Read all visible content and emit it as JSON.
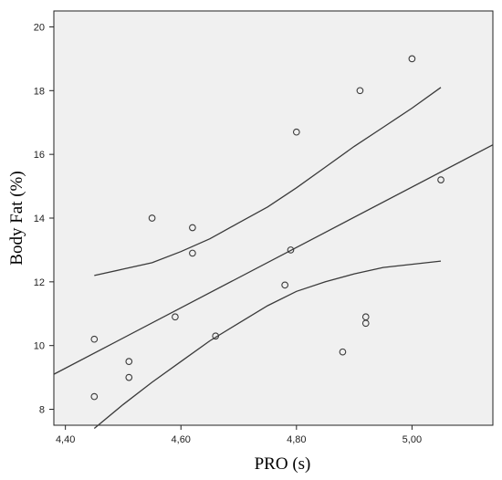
{
  "chart_data": {
    "type": "scatter",
    "xlabel": "PRO (s)",
    "ylabel": "Body Fat (%)",
    "xlim": [
      4.38,
      5.14
    ],
    "ylim": [
      7.5,
      20.5
    ],
    "x_ticks": [
      4.4,
      4.6,
      4.8,
      5.0
    ],
    "x_tick_labels": [
      "4,40",
      "4,60",
      "4,80",
      "5,00"
    ],
    "y_ticks": [
      8,
      10,
      12,
      14,
      16,
      18,
      20
    ],
    "y_tick_labels": [
      "8",
      "10",
      "12",
      "14",
      "16",
      "18",
      "20"
    ],
    "grid": false,
    "legend": "none",
    "points": [
      {
        "x": 4.45,
        "y": 10.2
      },
      {
        "x": 4.45,
        "y": 8.4
      },
      {
        "x": 4.51,
        "y": 9.5
      },
      {
        "x": 4.51,
        "y": 9.0
      },
      {
        "x": 4.55,
        "y": 14.0
      },
      {
        "x": 4.59,
        "y": 10.9
      },
      {
        "x": 4.62,
        "y": 13.7
      },
      {
        "x": 4.62,
        "y": 12.9
      },
      {
        "x": 4.66,
        "y": 10.3
      },
      {
        "x": 4.78,
        "y": 11.9
      },
      {
        "x": 4.79,
        "y": 13.0
      },
      {
        "x": 4.8,
        "y": 16.7
      },
      {
        "x": 4.88,
        "y": 9.8
      },
      {
        "x": 4.91,
        "y": 18.0
      },
      {
        "x": 4.92,
        "y": 10.9
      },
      {
        "x": 4.92,
        "y": 10.7
      },
      {
        "x": 5.0,
        "y": 19.0
      },
      {
        "x": 5.05,
        "y": 15.2
      }
    ],
    "fit_line": {
      "x": [
        4.38,
        5.14
      ],
      "y": [
        9.1,
        16.3
      ]
    },
    "upper_band": {
      "x": [
        4.45,
        4.5,
        4.55,
        4.6,
        4.65,
        4.7,
        4.75,
        4.8,
        4.85,
        4.9,
        4.95,
        5.0,
        5.05
      ],
      "y": [
        12.2,
        12.4,
        12.6,
        12.95,
        13.35,
        13.85,
        14.35,
        14.95,
        15.6,
        16.25,
        16.85,
        17.45,
        18.1
      ]
    },
    "lower_band": {
      "x": [
        4.45,
        4.5,
        4.55,
        4.6,
        4.65,
        4.7,
        4.75,
        4.8,
        4.85,
        4.9,
        4.95,
        5.0,
        5.05
      ],
      "y": [
        7.4,
        8.15,
        8.85,
        9.5,
        10.15,
        10.7,
        11.25,
        11.7,
        12.0,
        12.25,
        12.45,
        12.55,
        12.65
      ]
    },
    "colors": {
      "plot_background": "#f0f0f0",
      "line": "#3a3a3a",
      "marker_edge": "#3a3a3a",
      "frame": "#222222"
    }
  }
}
